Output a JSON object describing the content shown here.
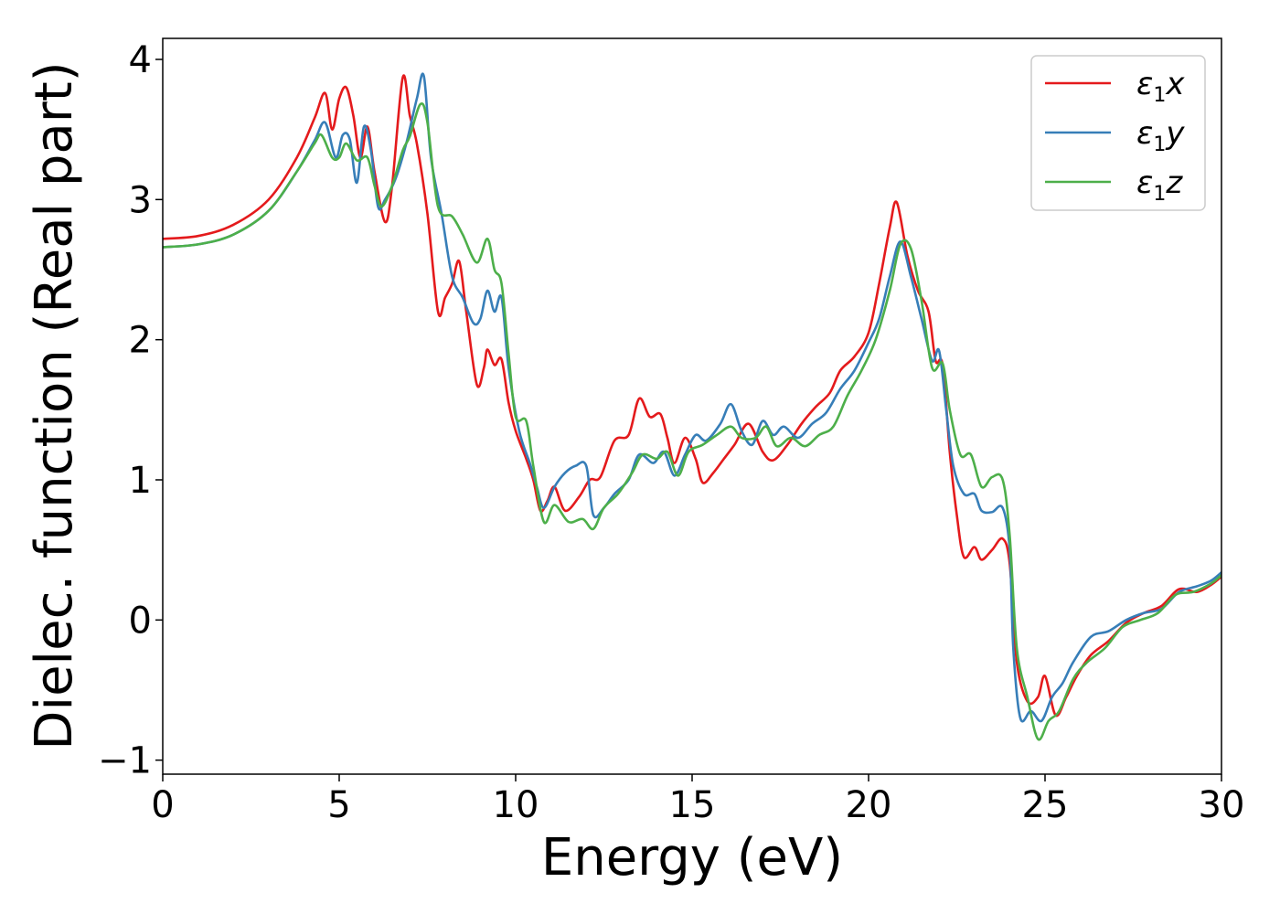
{
  "chart_data": {
    "type": "line",
    "title": "",
    "xlabel": "Energy (eV)",
    "ylabel": "Dielec. function (Real part)",
    "xlim": [
      0,
      30
    ],
    "ylim": [
      -1.1,
      4.15
    ],
    "xticks": [
      0,
      5,
      10,
      15,
      20,
      25,
      30
    ],
    "xtick_labels": [
      "0",
      "5",
      "10",
      "15",
      "20",
      "25",
      "30"
    ],
    "yticks": [
      -1,
      0,
      1,
      2,
      3,
      4
    ],
    "ytick_labels": [
      "−1",
      "0",
      "1",
      "2",
      "3",
      "4"
    ],
    "grid": false,
    "legend_position": "top-right",
    "series": [
      {
        "name": "ε₁x",
        "legend_symbol": "ε",
        "legend_sub": "1",
        "legend_var": "x",
        "color": "#e41a1c",
        "points": [
          [
            0,
            2.72
          ],
          [
            1,
            2.74
          ],
          [
            2,
            2.82
          ],
          [
            3,
            3.0
          ],
          [
            3.8,
            3.3
          ],
          [
            4.3,
            3.58
          ],
          [
            4.6,
            3.76
          ],
          [
            4.8,
            3.5
          ],
          [
            5.0,
            3.72
          ],
          [
            5.2,
            3.8
          ],
          [
            5.4,
            3.6
          ],
          [
            5.6,
            3.3
          ],
          [
            5.8,
            3.52
          ],
          [
            6.0,
            3.2
          ],
          [
            6.3,
            2.84
          ],
          [
            6.5,
            3.1
          ],
          [
            6.8,
            3.87
          ],
          [
            7.0,
            3.6
          ],
          [
            7.2,
            3.4
          ],
          [
            7.5,
            2.9
          ],
          [
            7.8,
            2.2
          ],
          [
            8.0,
            2.3
          ],
          [
            8.2,
            2.4
          ],
          [
            8.4,
            2.56
          ],
          [
            8.6,
            2.2
          ],
          [
            8.9,
            1.68
          ],
          [
            9.1,
            1.8
          ],
          [
            9.2,
            1.93
          ],
          [
            9.4,
            1.82
          ],
          [
            9.6,
            1.86
          ],
          [
            9.8,
            1.55
          ],
          [
            10.0,
            1.35
          ],
          [
            10.3,
            1.15
          ],
          [
            10.5,
            1.0
          ],
          [
            10.7,
            0.78
          ],
          [
            10.9,
            0.85
          ],
          [
            11.1,
            0.95
          ],
          [
            11.4,
            0.78
          ],
          [
            11.8,
            0.88
          ],
          [
            12.1,
            1.0
          ],
          [
            12.4,
            1.02
          ],
          [
            12.8,
            1.28
          ],
          [
            13.2,
            1.32
          ],
          [
            13.5,
            1.58
          ],
          [
            13.8,
            1.45
          ],
          [
            14.1,
            1.47
          ],
          [
            14.3,
            1.3
          ],
          [
            14.5,
            1.12
          ],
          [
            14.8,
            1.3
          ],
          [
            15.1,
            1.15
          ],
          [
            15.3,
            0.98
          ],
          [
            15.6,
            1.05
          ],
          [
            15.9,
            1.15
          ],
          [
            16.2,
            1.25
          ],
          [
            16.6,
            1.4
          ],
          [
            17.0,
            1.2
          ],
          [
            17.3,
            1.14
          ],
          [
            17.7,
            1.25
          ],
          [
            18.1,
            1.4
          ],
          [
            18.5,
            1.52
          ],
          [
            18.9,
            1.62
          ],
          [
            19.2,
            1.78
          ],
          [
            19.6,
            1.88
          ],
          [
            20.0,
            2.05
          ],
          [
            20.3,
            2.4
          ],
          [
            20.6,
            2.8
          ],
          [
            20.8,
            2.98
          ],
          [
            21.1,
            2.6
          ],
          [
            21.4,
            2.35
          ],
          [
            21.7,
            2.2
          ],
          [
            21.9,
            1.85
          ],
          [
            22.1,
            1.82
          ],
          [
            22.3,
            1.2
          ],
          [
            22.5,
            0.75
          ],
          [
            22.7,
            0.45
          ],
          [
            23.0,
            0.52
          ],
          [
            23.2,
            0.43
          ],
          [
            23.5,
            0.5
          ],
          [
            23.8,
            0.58
          ],
          [
            24.0,
            0.4
          ],
          [
            24.2,
            -0.3
          ],
          [
            24.5,
            -0.58
          ],
          [
            24.8,
            -0.55
          ],
          [
            25.0,
            -0.4
          ],
          [
            25.3,
            -0.68
          ],
          [
            25.6,
            -0.55
          ],
          [
            25.9,
            -0.4
          ],
          [
            26.3,
            -0.25
          ],
          [
            26.8,
            -0.15
          ],
          [
            27.3,
            -0.02
          ],
          [
            27.8,
            0.05
          ],
          [
            28.3,
            0.1
          ],
          [
            28.8,
            0.22
          ],
          [
            29.3,
            0.2
          ],
          [
            29.7,
            0.25
          ],
          [
            30,
            0.31
          ]
        ]
      },
      {
        "name": "ε₁y",
        "legend_symbol": "ε",
        "legend_sub": "1",
        "legend_var": "y",
        "color": "#377eb8",
        "points": [
          [
            0,
            2.66
          ],
          [
            1,
            2.68
          ],
          [
            2,
            2.75
          ],
          [
            3,
            2.92
          ],
          [
            3.8,
            3.2
          ],
          [
            4.3,
            3.42
          ],
          [
            4.6,
            3.55
          ],
          [
            4.9,
            3.3
          ],
          [
            5.1,
            3.46
          ],
          [
            5.3,
            3.43
          ],
          [
            5.5,
            3.12
          ],
          [
            5.7,
            3.52
          ],
          [
            5.9,
            3.35
          ],
          [
            6.1,
            2.95
          ],
          [
            6.3,
            3.0
          ],
          [
            6.6,
            3.15
          ],
          [
            6.9,
            3.4
          ],
          [
            7.2,
            3.72
          ],
          [
            7.4,
            3.88
          ],
          [
            7.6,
            3.3
          ],
          [
            7.9,
            2.9
          ],
          [
            8.2,
            2.45
          ],
          [
            8.5,
            2.3
          ],
          [
            8.8,
            2.12
          ],
          [
            9.0,
            2.15
          ],
          [
            9.2,
            2.35
          ],
          [
            9.4,
            2.2
          ],
          [
            9.6,
            2.3
          ],
          [
            9.8,
            1.8
          ],
          [
            10.1,
            1.35
          ],
          [
            10.4,
            1.12
          ],
          [
            10.6,
            0.95
          ],
          [
            10.8,
            0.8
          ],
          [
            11.1,
            0.95
          ],
          [
            11.4,
            1.05
          ],
          [
            11.7,
            1.1
          ],
          [
            12.0,
            1.1
          ],
          [
            12.2,
            0.75
          ],
          [
            12.5,
            0.8
          ],
          [
            12.8,
            0.9
          ],
          [
            13.2,
            1.0
          ],
          [
            13.5,
            1.18
          ],
          [
            13.9,
            1.12
          ],
          [
            14.2,
            1.2
          ],
          [
            14.5,
            1.03
          ],
          [
            14.8,
            1.18
          ],
          [
            15.1,
            1.32
          ],
          [
            15.4,
            1.28
          ],
          [
            15.8,
            1.4
          ],
          [
            16.1,
            1.54
          ],
          [
            16.4,
            1.35
          ],
          [
            16.7,
            1.25
          ],
          [
            17.0,
            1.42
          ],
          [
            17.3,
            1.32
          ],
          [
            17.6,
            1.38
          ],
          [
            18.0,
            1.3
          ],
          [
            18.4,
            1.4
          ],
          [
            18.8,
            1.48
          ],
          [
            19.2,
            1.65
          ],
          [
            19.6,
            1.78
          ],
          [
            20.0,
            1.98
          ],
          [
            20.3,
            2.15
          ],
          [
            20.6,
            2.45
          ],
          [
            20.9,
            2.7
          ],
          [
            21.2,
            2.45
          ],
          [
            21.5,
            2.15
          ],
          [
            21.8,
            1.85
          ],
          [
            22.0,
            1.92
          ],
          [
            22.2,
            1.5
          ],
          [
            22.4,
            1.1
          ],
          [
            22.7,
            0.9
          ],
          [
            23.0,
            0.9
          ],
          [
            23.2,
            0.78
          ],
          [
            23.5,
            0.77
          ],
          [
            23.8,
            0.8
          ],
          [
            24.0,
            0.5
          ],
          [
            24.1,
            -0.2
          ],
          [
            24.3,
            -0.7
          ],
          [
            24.6,
            -0.65
          ],
          [
            24.9,
            -0.72
          ],
          [
            25.2,
            -0.55
          ],
          [
            25.5,
            -0.45
          ],
          [
            25.8,
            -0.3
          ],
          [
            26.3,
            -0.12
          ],
          [
            26.8,
            -0.08
          ],
          [
            27.3,
            0.0
          ],
          [
            27.8,
            0.05
          ],
          [
            28.3,
            0.08
          ],
          [
            28.8,
            0.2
          ],
          [
            29.3,
            0.24
          ],
          [
            29.7,
            0.28
          ],
          [
            30,
            0.34
          ]
        ]
      },
      {
        "name": "ε₁z",
        "legend_symbol": "ε",
        "legend_sub": "1",
        "legend_var": "z",
        "color": "#4daf4a",
        "points": [
          [
            0,
            2.66
          ],
          [
            1,
            2.68
          ],
          [
            2,
            2.75
          ],
          [
            3,
            2.92
          ],
          [
            3.8,
            3.2
          ],
          [
            4.3,
            3.4
          ],
          [
            4.5,
            3.46
          ],
          [
            4.8,
            3.3
          ],
          [
            5.0,
            3.3
          ],
          [
            5.2,
            3.4
          ],
          [
            5.5,
            3.28
          ],
          [
            5.8,
            3.3
          ],
          [
            6.0,
            3.1
          ],
          [
            6.2,
            2.95
          ],
          [
            6.5,
            3.1
          ],
          [
            6.8,
            3.35
          ],
          [
            7.0,
            3.45
          ],
          [
            7.3,
            3.68
          ],
          [
            7.5,
            3.55
          ],
          [
            7.8,
            2.95
          ],
          [
            8.2,
            2.88
          ],
          [
            8.5,
            2.75
          ],
          [
            8.9,
            2.55
          ],
          [
            9.2,
            2.72
          ],
          [
            9.4,
            2.5
          ],
          [
            9.6,
            2.4
          ],
          [
            9.8,
            1.9
          ],
          [
            10.0,
            1.45
          ],
          [
            10.3,
            1.42
          ],
          [
            10.5,
            1.1
          ],
          [
            10.8,
            0.7
          ],
          [
            11.1,
            0.82
          ],
          [
            11.5,
            0.7
          ],
          [
            11.9,
            0.72
          ],
          [
            12.2,
            0.65
          ],
          [
            12.5,
            0.8
          ],
          [
            12.9,
            0.9
          ],
          [
            13.3,
            1.05
          ],
          [
            13.6,
            1.18
          ],
          [
            14.0,
            1.15
          ],
          [
            14.3,
            1.2
          ],
          [
            14.6,
            1.03
          ],
          [
            14.9,
            1.2
          ],
          [
            15.3,
            1.25
          ],
          [
            15.7,
            1.32
          ],
          [
            16.1,
            1.38
          ],
          [
            16.4,
            1.3
          ],
          [
            16.8,
            1.3
          ],
          [
            17.1,
            1.38
          ],
          [
            17.4,
            1.24
          ],
          [
            17.8,
            1.3
          ],
          [
            18.2,
            1.24
          ],
          [
            18.6,
            1.32
          ],
          [
            19.0,
            1.38
          ],
          [
            19.4,
            1.6
          ],
          [
            19.8,
            1.78
          ],
          [
            20.2,
            2.0
          ],
          [
            20.6,
            2.35
          ],
          [
            20.9,
            2.68
          ],
          [
            21.2,
            2.65
          ],
          [
            21.5,
            2.28
          ],
          [
            21.8,
            1.8
          ],
          [
            22.1,
            1.83
          ],
          [
            22.3,
            1.5
          ],
          [
            22.6,
            1.18
          ],
          [
            22.9,
            1.18
          ],
          [
            23.2,
            0.95
          ],
          [
            23.5,
            1.02
          ],
          [
            23.8,
            1.0
          ],
          [
            24.0,
            0.6
          ],
          [
            24.2,
            -0.2
          ],
          [
            24.5,
            -0.55
          ],
          [
            24.8,
            -0.85
          ],
          [
            25.1,
            -0.72
          ],
          [
            25.4,
            -0.65
          ],
          [
            25.8,
            -0.42
          ],
          [
            26.2,
            -0.3
          ],
          [
            26.7,
            -0.2
          ],
          [
            27.2,
            -0.05
          ],
          [
            27.7,
            0.0
          ],
          [
            28.2,
            0.05
          ],
          [
            28.7,
            0.18
          ],
          [
            29.2,
            0.2
          ],
          [
            29.7,
            0.26
          ],
          [
            30,
            0.32
          ]
        ]
      }
    ]
  }
}
